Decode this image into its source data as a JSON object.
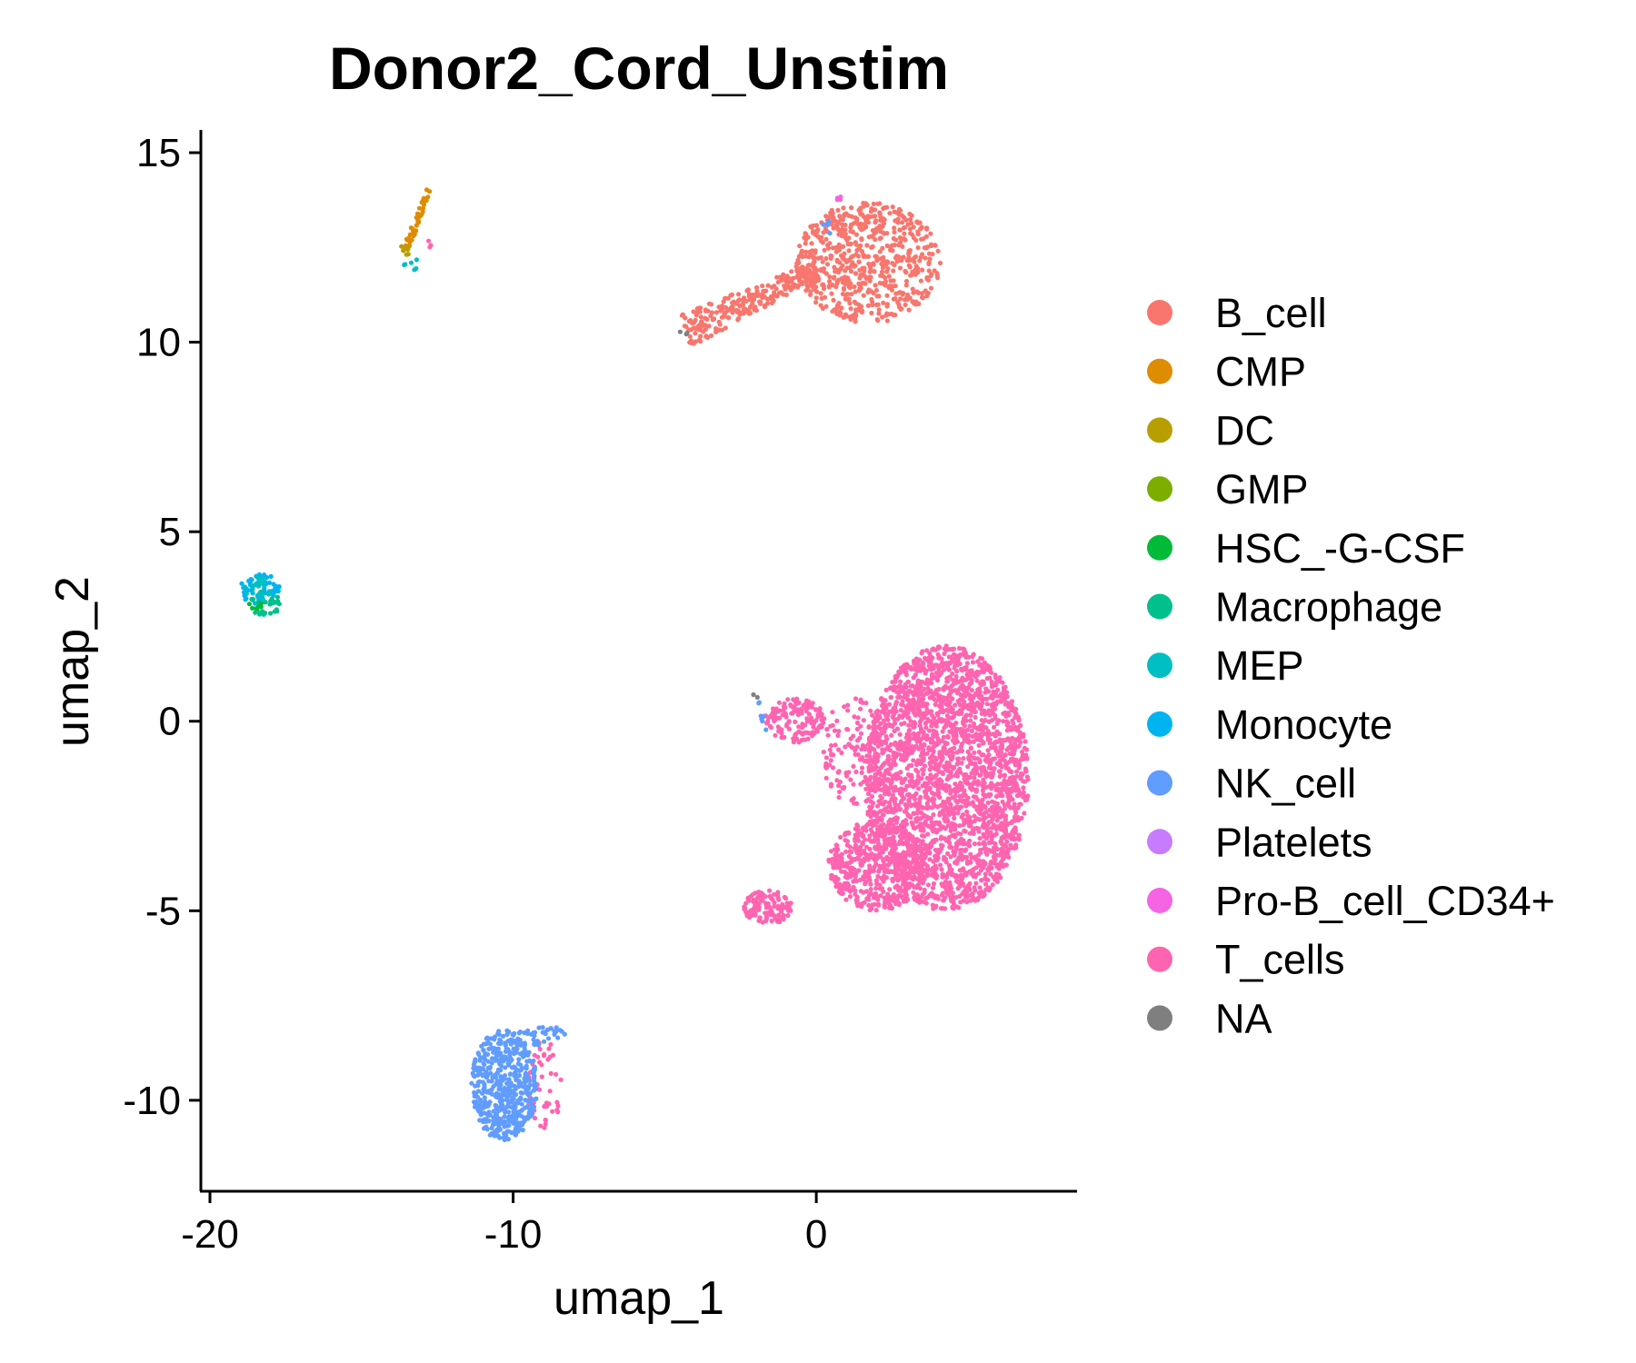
{
  "chart_data": {
    "type": "scatter",
    "title": "Donor2_Cord_Unstim",
    "xlabel": "umap_1",
    "ylabel": "umap_2",
    "xlim": [
      -20.3,
      8.6
    ],
    "ylim": [
      -12.4,
      15.6
    ],
    "x_ticks": [
      -20,
      -10,
      0
    ],
    "x_tick_labels": [
      "-20",
      "-10",
      "0"
    ],
    "y_ticks": [
      -10,
      -5,
      0,
      5,
      10,
      15
    ],
    "y_tick_labels": [
      "-10",
      "-5",
      "0",
      "5",
      "10",
      "15"
    ],
    "grid": false,
    "legend_position": "right",
    "legend": [
      {
        "name": "B_cell",
        "color": "#F8766D"
      },
      {
        "name": "CMP",
        "color": "#DE8C00"
      },
      {
        "name": "DC",
        "color": "#B79F00"
      },
      {
        "name": "GMP",
        "color": "#7CAE00"
      },
      {
        "name": "HSC_-G-CSF",
        "color": "#00BA38"
      },
      {
        "name": "Macrophage",
        "color": "#00C08B"
      },
      {
        "name": "MEP",
        "color": "#00BFC4"
      },
      {
        "name": "Monocyte",
        "color": "#00B4F0"
      },
      {
        "name": "NK_cell",
        "color": "#619CFF"
      },
      {
        "name": "Platelets",
        "color": "#C77CFF"
      },
      {
        "name": "Pro-B_cell_CD34+",
        "color": "#F564E3"
      },
      {
        "name": "T_cells",
        "color": "#FF64B0"
      },
      {
        "name": "NA",
        "color": "#7F7F7F"
      }
    ],
    "series": [
      {
        "name": "B_cell",
        "color": "#F8766D",
        "clusters": [
          {
            "shape": "ellipse",
            "cx": 1.7,
            "cy": 12.1,
            "rx": 2.4,
            "ry": 1.6,
            "n": 650
          },
          {
            "shape": "band",
            "x1": -4.3,
            "y1": 10.3,
            "x2": 0.0,
            "y2": 11.9,
            "width": 0.9,
            "n": 260
          }
        ]
      },
      {
        "name": "CMP",
        "color": "#DE8C00",
        "clusters": [
          {
            "shape": "band",
            "x1": -13.6,
            "y1": 12.3,
            "x2": -12.8,
            "y2": 14.0,
            "width": 0.25,
            "n": 45
          }
        ]
      },
      {
        "name": "DC",
        "color": "#B79F00",
        "clusters": [
          {
            "shape": "ellipse",
            "cx": -13.6,
            "cy": 12.4,
            "rx": 0.2,
            "ry": 0.15,
            "n": 6
          }
        ]
      },
      {
        "name": "MEP",
        "color": "#00BFC4",
        "clusters": [
          {
            "shape": "ellipse",
            "cx": -13.3,
            "cy": 12.1,
            "rx": 0.4,
            "ry": 0.2,
            "n": 6
          },
          {
            "shape": "ellipse",
            "cx": -18.5,
            "cy": 3.5,
            "rx": 0.5,
            "ry": 0.35,
            "n": 20
          }
        ]
      },
      {
        "name": "Macrophage",
        "color": "#00C08B",
        "clusters": [
          {
            "shape": "ellipse",
            "cx": -18.2,
            "cy": 3.1,
            "rx": 0.5,
            "ry": 0.35,
            "n": 35
          }
        ]
      },
      {
        "name": "HSC_-G-CSF",
        "color": "#00BA38",
        "clusters": [
          {
            "shape": "ellipse",
            "cx": -18.5,
            "cy": 3.0,
            "rx": 0.3,
            "ry": 0.2,
            "n": 6
          }
        ]
      },
      {
        "name": "Monocyte",
        "color": "#00B4F0",
        "clusters": [
          {
            "shape": "ellipse",
            "cx": -18.4,
            "cy": 3.5,
            "rx": 0.7,
            "ry": 0.4,
            "n": 55
          }
        ]
      },
      {
        "name": "NK_cell",
        "color": "#619CFF",
        "clusters": [
          {
            "shape": "ellipse",
            "cx": -10.3,
            "cy": -9.6,
            "rx": 1.1,
            "ry": 1.45,
            "n": 520
          },
          {
            "shape": "band",
            "x1": -9.8,
            "y1": -8.4,
            "x2": -8.3,
            "y2": -8.2,
            "width": 0.6,
            "n": 40
          },
          {
            "shape": "band",
            "x1": -2.0,
            "y1": 0.6,
            "x2": -1.6,
            "y2": -0.3,
            "width": 0.15,
            "n": 8
          },
          {
            "shape": "ellipse",
            "cx": 0.4,
            "cy": 13.0,
            "rx": 0.2,
            "ry": 0.2,
            "n": 5
          }
        ]
      },
      {
        "name": "Pro-B_cell_CD34+",
        "color": "#F564E3",
        "clusters": [
          {
            "shape": "ellipse",
            "cx": 0.7,
            "cy": 13.8,
            "rx": 0.2,
            "ry": 0.05,
            "n": 4
          }
        ]
      },
      {
        "name": "T_cells",
        "color": "#FF64B0",
        "clusters": [
          {
            "shape": "ellipse",
            "cx": 4.3,
            "cy": -1.5,
            "rx": 2.7,
            "ry": 3.5,
            "n": 2600
          },
          {
            "shape": "ellipse",
            "cx": 2.0,
            "cy": -3.8,
            "rx": 1.6,
            "ry": 1.2,
            "n": 500
          },
          {
            "shape": "ellipse",
            "cx": -0.7,
            "cy": 0.0,
            "rx": 1.0,
            "ry": 0.6,
            "n": 140
          },
          {
            "shape": "ellipse",
            "cx": 1.3,
            "cy": -0.8,
            "rx": 1.2,
            "ry": 1.4,
            "n": 120
          },
          {
            "shape": "ellipse",
            "cx": -1.6,
            "cy": -4.9,
            "rx": 0.8,
            "ry": 0.45,
            "n": 120
          },
          {
            "shape": "ellipse",
            "cx": -9.0,
            "cy": -9.6,
            "rx": 0.6,
            "ry": 1.2,
            "n": 50
          },
          {
            "shape": "ellipse",
            "cx": -12.8,
            "cy": 12.5,
            "rx": 0.2,
            "ry": 0.2,
            "n": 3
          }
        ]
      },
      {
        "name": "NA",
        "color": "#7F7F7F",
        "clusters": [
          {
            "shape": "ellipse",
            "cx": -4.4,
            "cy": 10.2,
            "rx": 0.15,
            "ry": 0.1,
            "n": 3
          },
          {
            "shape": "ellipse",
            "cx": -2.0,
            "cy": 0.7,
            "rx": 0.1,
            "ry": 0.1,
            "n": 2
          }
        ]
      }
    ]
  }
}
